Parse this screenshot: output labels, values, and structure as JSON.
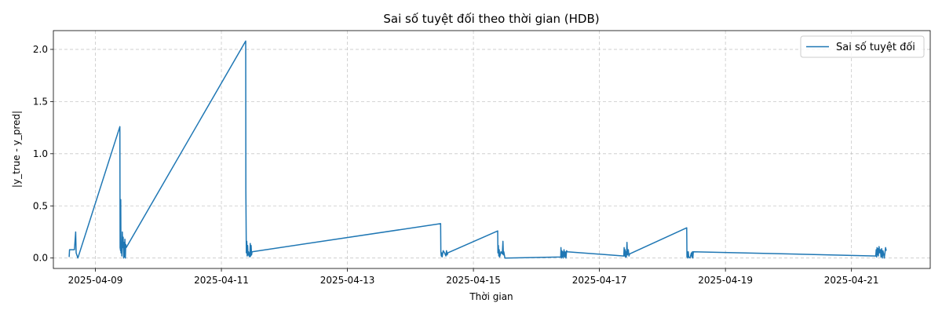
{
  "chart_data": {
    "type": "line",
    "title": "Sai số tuyệt đối theo thời gian (HDB)",
    "xlabel": "Thời gian",
    "ylabel": "|y_true - y_pred|",
    "x_ticks": [
      "2025-04-09",
      "2025-04-11",
      "2025-04-13",
      "2025-04-15",
      "2025-04-17",
      "2025-04-19",
      "2025-04-21"
    ],
    "y_ticks": [
      "0.0",
      "0.5",
      "1.0",
      "1.5",
      "2.0"
    ],
    "xlim": [
      "2025-04-08 08:00",
      "2025-04-22 06:00"
    ],
    "ylim": [
      -0.1,
      2.18
    ],
    "grid": true,
    "legend_position": "top-right",
    "series": [
      {
        "name": "Sai số tuyệt đối",
        "color": "#1f77b4",
        "points": [
          [
            "2025-04-08 14:00",
            0.01
          ],
          [
            "2025-04-08 14:10",
            0.08
          ],
          [
            "2025-04-08 15:00",
            0.08
          ],
          [
            "2025-04-08 16:00",
            0.08
          ],
          [
            "2025-04-08 16:30",
            0.25
          ],
          [
            "2025-04-08 16:40",
            0.05
          ],
          [
            "2025-04-08 17:20",
            0.0
          ],
          [
            "2025-04-09 09:20",
            1.26
          ],
          [
            "2025-04-09 09:25",
            0.1
          ],
          [
            "2025-04-09 09:35",
            0.07
          ],
          [
            "2025-04-09 09:40",
            0.56
          ],
          [
            "2025-04-09 09:45",
            0.05
          ],
          [
            "2025-04-09 09:55",
            0.15
          ],
          [
            "2025-04-09 10:05",
            0.02
          ],
          [
            "2025-04-09 10:15",
            0.25
          ],
          [
            "2025-04-09 10:25",
            0.1
          ],
          [
            "2025-04-09 10:35",
            0.2
          ],
          [
            "2025-04-09 10:45",
            0.0
          ],
          [
            "2025-04-09 10:55",
            0.15
          ],
          [
            "2025-04-09 11:05",
            0.01
          ],
          [
            "2025-04-09 11:15",
            0.18
          ],
          [
            "2025-04-09 11:25",
            0.0
          ],
          [
            "2025-04-09 11:35",
            0.13
          ],
          [
            "2025-04-09 11:45",
            0.1
          ],
          [
            "2025-04-11 09:15",
            2.08
          ],
          [
            "2025-04-11 09:20",
            0.64
          ],
          [
            "2025-04-11 09:30",
            0.05
          ],
          [
            "2025-04-11 09:40",
            0.16
          ],
          [
            "2025-04-11 09:50",
            0.02
          ],
          [
            "2025-04-11 10:00",
            0.12
          ],
          [
            "2025-04-11 10:10",
            0.03
          ],
          [
            "2025-04-11 10:20",
            0.06
          ],
          [
            "2025-04-11 10:30",
            0.02
          ],
          [
            "2025-04-11 10:40",
            0.05
          ],
          [
            "2025-04-11 10:50",
            0.01
          ],
          [
            "2025-04-11 11:00",
            0.14
          ],
          [
            "2025-04-11 11:10",
            0.02
          ],
          [
            "2025-04-11 11:20",
            0.12
          ],
          [
            "2025-04-11 11:30",
            0.03
          ],
          [
            "2025-04-11 11:40",
            0.06
          ],
          [
            "2025-04-14 11:30",
            0.33
          ],
          [
            "2025-04-14 11:35",
            0.06
          ],
          [
            "2025-04-14 11:45",
            0.02
          ],
          [
            "2025-04-14 11:55",
            0.05
          ],
          [
            "2025-04-14 12:05",
            0.01
          ],
          [
            "2025-04-14 12:30",
            0.07
          ],
          [
            "2025-04-14 13:00",
            0.05
          ],
          [
            "2025-04-14 13:30",
            0.02
          ],
          [
            "2025-04-14 13:45",
            0.07
          ],
          [
            "2025-04-14 14:00",
            0.03
          ],
          [
            "2025-04-14 14:15",
            0.05
          ],
          [
            "2025-04-15 09:15",
            0.26
          ],
          [
            "2025-04-15 09:20",
            0.05
          ],
          [
            "2025-04-15 09:30",
            0.12
          ],
          [
            "2025-04-15 09:40",
            0.02
          ],
          [
            "2025-04-15 09:50",
            0.08
          ],
          [
            "2025-04-15 10:00",
            0.01
          ],
          [
            "2025-04-15 10:30",
            0.06
          ],
          [
            "2025-04-15 11:00",
            0.04
          ],
          [
            "2025-04-15 11:15",
            0.16
          ],
          [
            "2025-04-15 11:25",
            0.03
          ],
          [
            "2025-04-15 11:35",
            0.06
          ],
          [
            "2025-04-15 12:00",
            0.0
          ],
          [
            "2025-04-16 09:15",
            0.01
          ],
          [
            "2025-04-16 09:20",
            0.1
          ],
          [
            "2025-04-16 09:30",
            0.0
          ],
          [
            "2025-04-16 09:40",
            0.07
          ],
          [
            "2025-04-16 09:50",
            0.01
          ],
          [
            "2025-04-16 10:00",
            0.06
          ],
          [
            "2025-04-16 10:10",
            0.0
          ],
          [
            "2025-04-16 10:30",
            0.08
          ],
          [
            "2025-04-16 10:45",
            0.01
          ],
          [
            "2025-04-16 11:00",
            0.06
          ],
          [
            "2025-04-16 11:15",
            0.0
          ],
          [
            "2025-04-16 11:30",
            0.07
          ],
          [
            "2025-04-16 11:45",
            0.06
          ],
          [
            "2025-04-17 09:15",
            0.02
          ],
          [
            "2025-04-17 09:25",
            0.1
          ],
          [
            "2025-04-17 09:35",
            0.02
          ],
          [
            "2025-04-17 09:45",
            0.08
          ],
          [
            "2025-04-17 09:55",
            0.01
          ],
          [
            "2025-04-17 10:05",
            0.06
          ],
          [
            "2025-04-17 10:15",
            0.01
          ],
          [
            "2025-04-17 10:30",
            0.15
          ],
          [
            "2025-04-17 10:40",
            0.03
          ],
          [
            "2025-04-17 11:00",
            0.08
          ],
          [
            "2025-04-17 11:15",
            0.02
          ],
          [
            "2025-04-17 11:30",
            0.04
          ],
          [
            "2025-04-18 09:15",
            0.29
          ],
          [
            "2025-04-18 09:20",
            0.01
          ],
          [
            "2025-04-18 09:30",
            0.06
          ],
          [
            "2025-04-18 09:40",
            0.0
          ],
          [
            "2025-04-18 09:50",
            0.06
          ],
          [
            "2025-04-18 10:00",
            0.01
          ],
          [
            "2025-04-18 10:30",
            0.0
          ],
          [
            "2025-04-18 11:00",
            0.05
          ],
          [
            "2025-04-18 11:15",
            0.01
          ],
          [
            "2025-04-18 11:25",
            0.06
          ],
          [
            "2025-04-18 11:35",
            0.0
          ],
          [
            "2025-04-18 11:45",
            0.06
          ],
          [
            "2025-04-21 09:15",
            0.02
          ],
          [
            "2025-04-21 09:25",
            0.08
          ],
          [
            "2025-04-21 09:35",
            0.01
          ],
          [
            "2025-04-21 09:45",
            0.1
          ],
          [
            "2025-04-21 09:55",
            0.03
          ],
          [
            "2025-04-21 10:05",
            0.09
          ],
          [
            "2025-04-21 10:15",
            0.02
          ],
          [
            "2025-04-21 10:30",
            0.11
          ],
          [
            "2025-04-21 10:45",
            0.05
          ],
          [
            "2025-04-21 11:00",
            0.08
          ],
          [
            "2025-04-21 11:15",
            0.01
          ],
          [
            "2025-04-21 11:30",
            0.09
          ],
          [
            "2025-04-21 11:45",
            0.0
          ],
          [
            "2025-04-21 12:00",
            0.07
          ],
          [
            "2025-04-21 12:30",
            0.0
          ],
          [
            "2025-04-21 13:00",
            0.1
          ],
          [
            "2025-04-21 13:15",
            0.07
          ]
        ]
      }
    ]
  }
}
